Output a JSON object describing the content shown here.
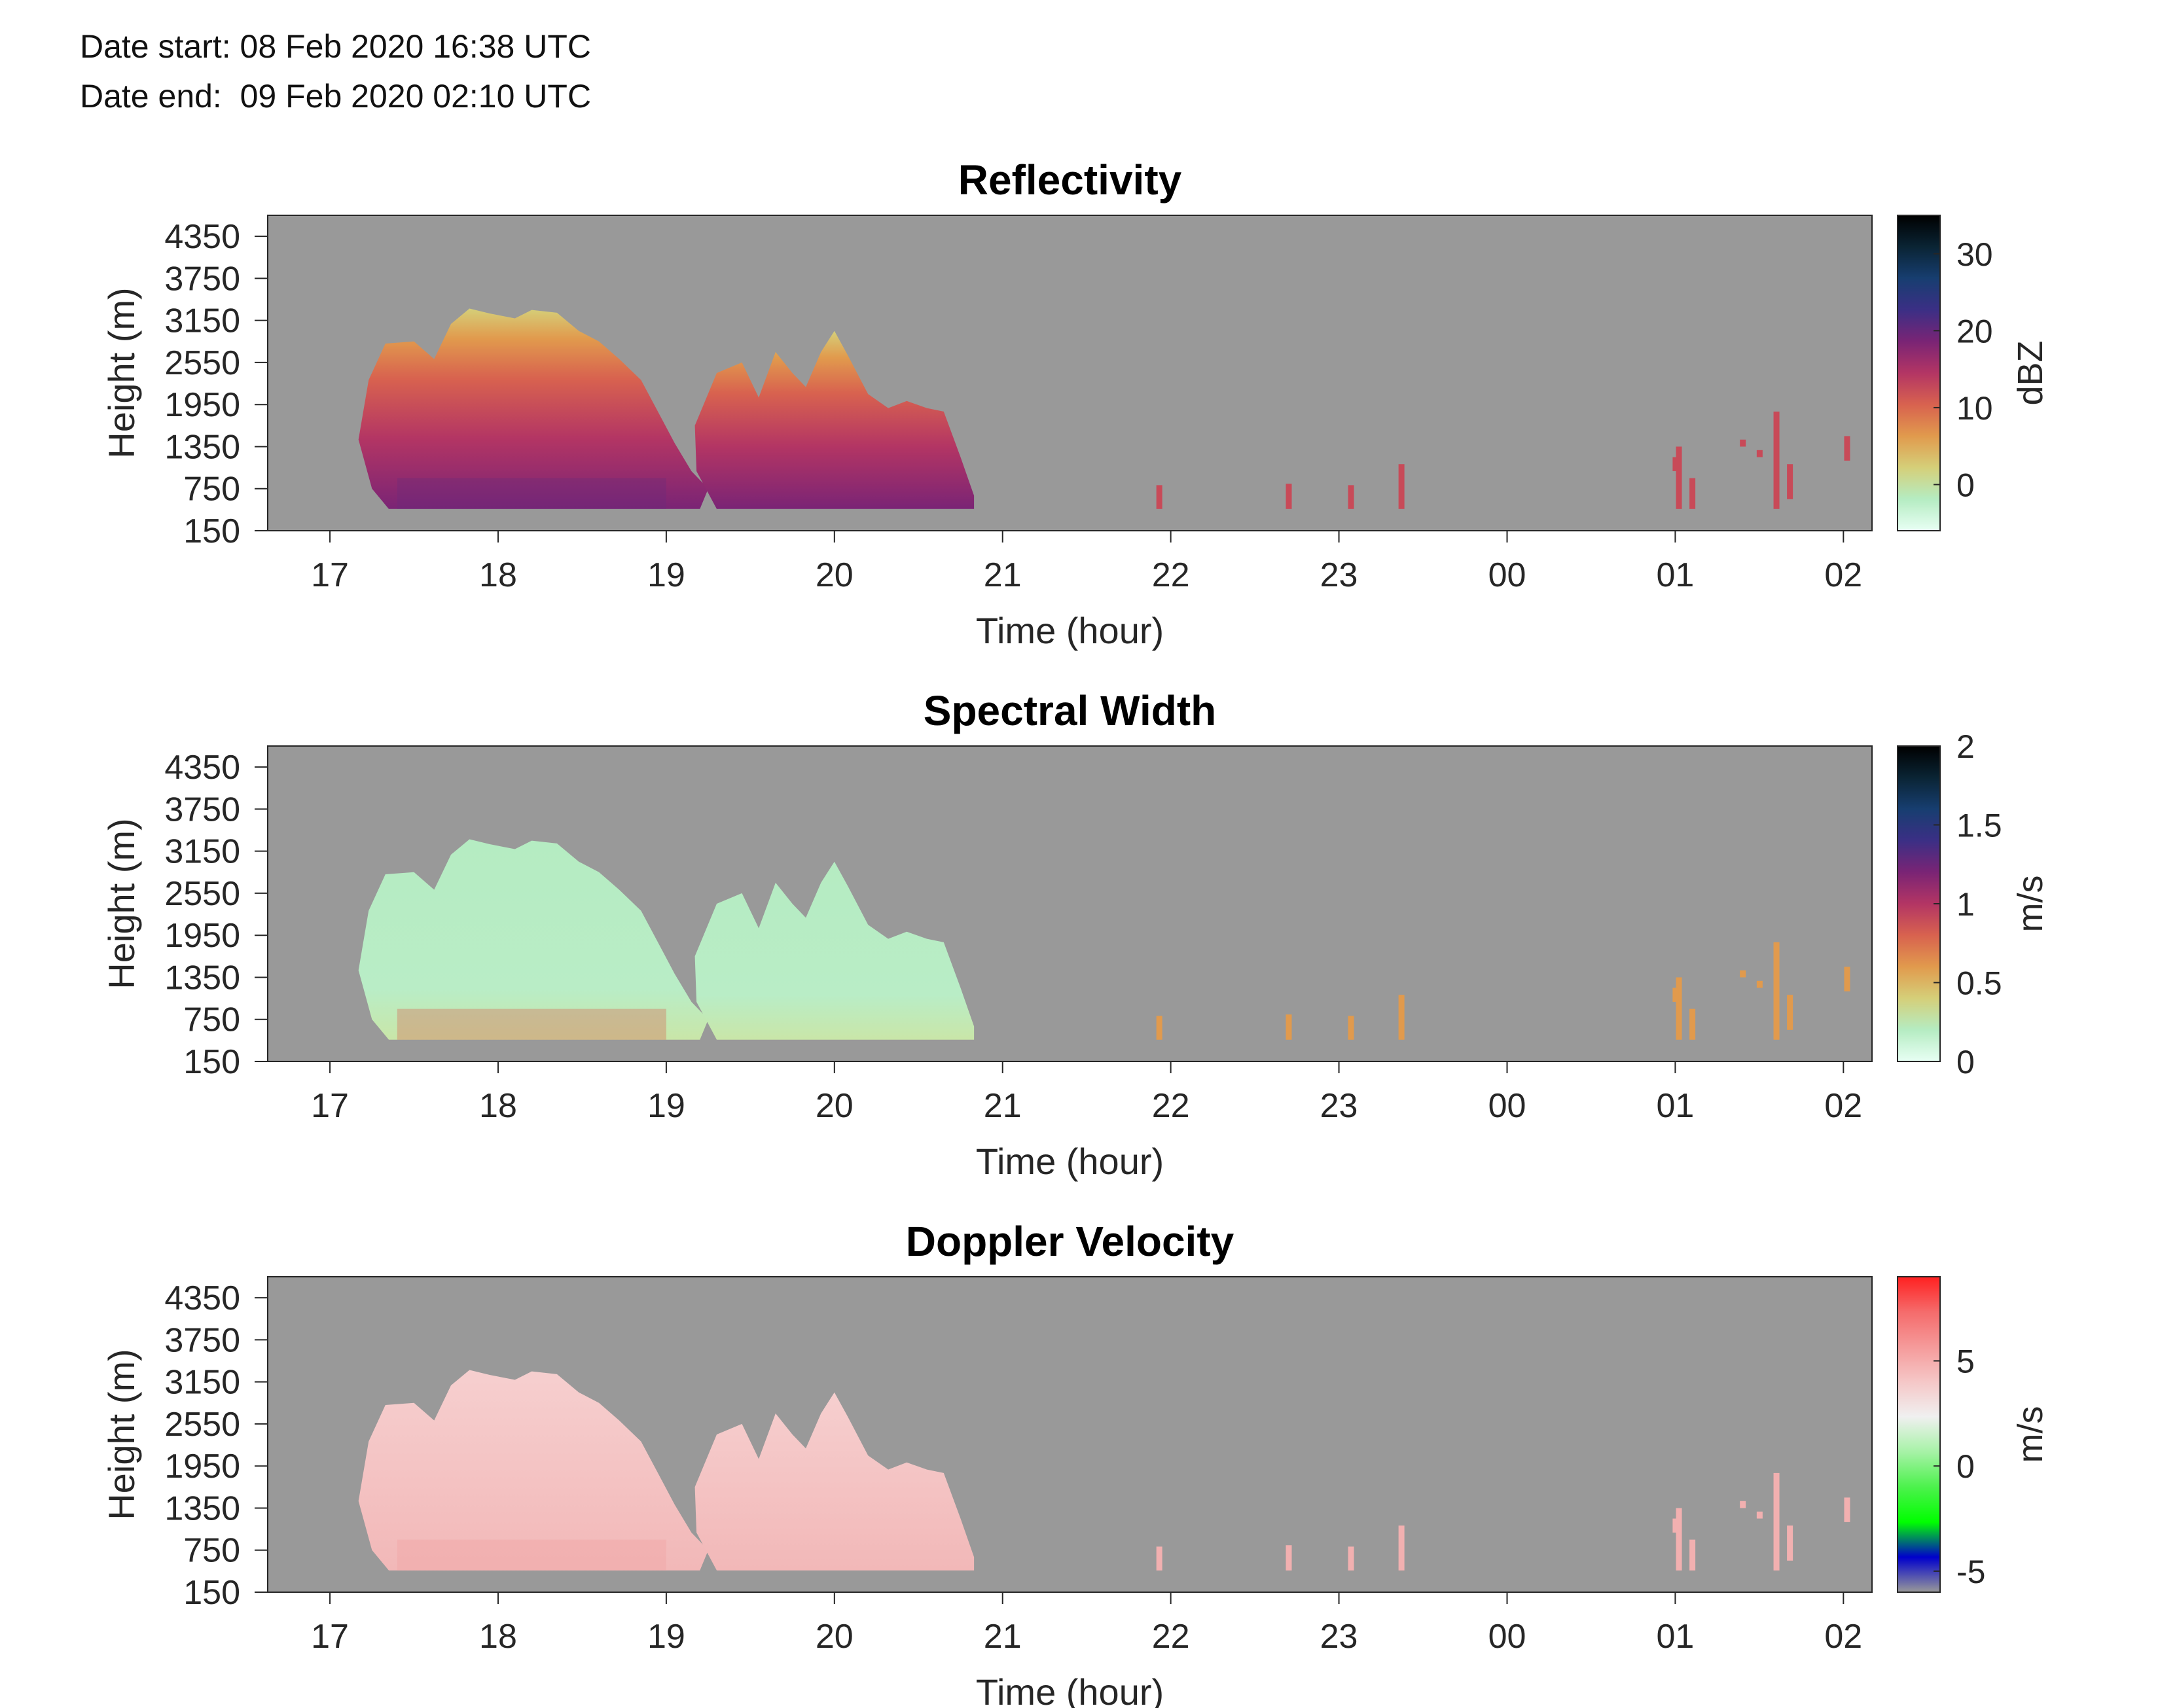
{
  "header": {
    "date_start": "Date start: 08 Feb 2020 16:38 UTC",
    "date_end": "Date end:  09 Feb 2020 02:10 UTC"
  },
  "chart_data": [
    {
      "type": "heatmap",
      "title": "Reflectivity",
      "xlabel": "Time (hour)",
      "ylabel": "Height (m)",
      "x_ticks": [
        "17",
        "18",
        "19",
        "20",
        "21",
        "22",
        "23",
        "00",
        "01",
        "02"
      ],
      "y_ticks": [
        "150",
        "750",
        "1350",
        "1950",
        "2550",
        "3150",
        "3750",
        "4350"
      ],
      "xlim": [
        16.63,
        26.17
      ],
      "ylim": [
        150,
        4650
      ],
      "colorbar": {
        "label": "dBZ",
        "ticks": [
          "0",
          "10",
          "20",
          "30"
        ],
        "tick_values": [
          0,
          10,
          20,
          30
        ],
        "range": [
          -6,
          35
        ],
        "colors": [
          "#e8fff4",
          "#b5ecc2",
          "#d5cf79",
          "#e19a4d",
          "#d8624f",
          "#b33564",
          "#7a2475",
          "#3b2f85",
          "#173e70",
          "#0a2434",
          "#000000"
        ]
      },
      "background_color": "#999999"
    },
    {
      "type": "heatmap",
      "title": "Spectral Width",
      "xlabel": "Time (hour)",
      "ylabel": "Height (m)",
      "x_ticks": [
        "17",
        "18",
        "19",
        "20",
        "21",
        "22",
        "23",
        "00",
        "01",
        "02"
      ],
      "y_ticks": [
        "150",
        "750",
        "1350",
        "1950",
        "2550",
        "3150",
        "3750",
        "4350"
      ],
      "xlim": [
        16.63,
        26.17
      ],
      "ylim": [
        150,
        4650
      ],
      "colorbar": {
        "label": "m/s",
        "ticks": [
          "0",
          "0.5",
          "1",
          "1.5",
          "2"
        ],
        "tick_values": [
          0,
          0.5,
          1,
          1.5,
          2
        ],
        "range": [
          0,
          2
        ],
        "colors": [
          "#e8fff4",
          "#b5ecc2",
          "#d5cf79",
          "#e19a4d",
          "#d8624f",
          "#b33564",
          "#7a2475",
          "#3b2f85",
          "#173e70",
          "#0a2434",
          "#000000"
        ]
      },
      "background_color": "#999999"
    },
    {
      "type": "heatmap",
      "title": "Doppler Velocity",
      "xlabel": "Time (hour)",
      "ylabel": "Height (m)",
      "x_ticks": [
        "17",
        "18",
        "19",
        "20",
        "21",
        "22",
        "23",
        "00",
        "01",
        "02"
      ],
      "y_ticks": [
        "150",
        "750",
        "1350",
        "1950",
        "2550",
        "3150",
        "3750",
        "4350"
      ],
      "xlim": [
        16.63,
        26.17
      ],
      "ylim": [
        150,
        4650
      ],
      "colorbar": {
        "label": "m/s",
        "ticks": [
          "-5",
          "0",
          "5"
        ],
        "tick_values": [
          -5,
          0,
          5
        ],
        "range": [
          -6,
          9
        ],
        "colors": [
          "#999999",
          "#0000cc",
          "#00ff00",
          "#4cf24c",
          "#a6f2a6",
          "#f0f0f0",
          "#f5c7c7",
          "#f59a9a",
          "#f56b6b",
          "#ff2020"
        ]
      },
      "background_color": "#999999"
    }
  ]
}
